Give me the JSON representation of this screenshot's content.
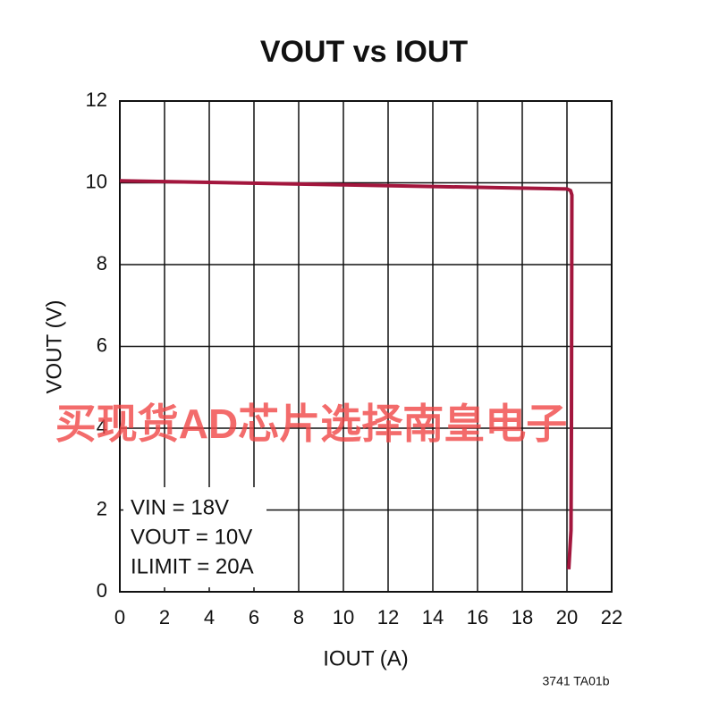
{
  "chart_data": {
    "type": "line",
    "title": "VOUT vs IOUT",
    "xlabel": "IOUT (A)",
    "ylabel": "VOUT (V)",
    "x": [
      0,
      10,
      20,
      20.16,
      20.22,
      20.2,
      20.18,
      20.08
    ],
    "values": [
      10.05,
      9.95,
      9.85,
      9.81,
      9.7,
      4,
      1.5,
      0.55
    ],
    "color": "#a3163d",
    "xlim": [
      0,
      22
    ],
    "xticks": [
      0,
      2,
      4,
      6,
      8,
      10,
      12,
      14,
      16,
      18,
      20,
      22
    ],
    "ylim": [
      0,
      12
    ],
    "yticks": [
      0,
      2,
      4,
      6,
      8,
      10,
      12
    ],
    "grid": true,
    "annotations": [
      "VIN = 18V",
      "VOUT = 10V",
      "ILIMIT = 20A"
    ],
    "footnote": "3741 TA01b",
    "watermark": "买现货AD芯片选择南皇电子"
  }
}
